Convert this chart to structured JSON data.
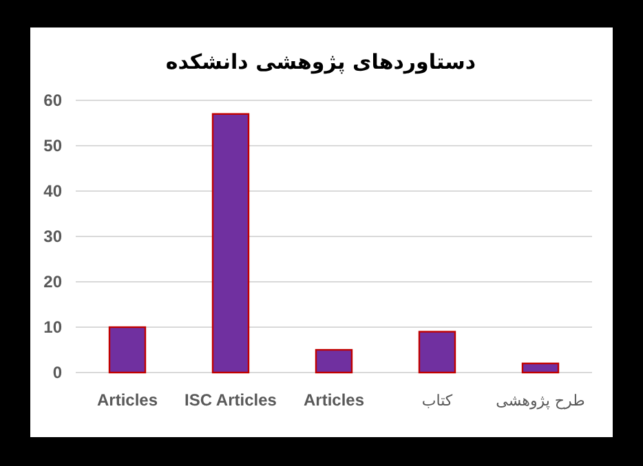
{
  "chart_data": {
    "type": "bar",
    "title": "دستاوردهای پژوهشی دانشکده",
    "categories": [
      "Articles",
      "ISC Articles",
      "Articles",
      "کتاب",
      "طرح پژوهشی"
    ],
    "values": [
      10,
      57,
      5,
      9,
      2
    ],
    "color": "#7030a0",
    "ylim": [
      0,
      60
    ],
    "yticks": [
      0,
      10,
      20,
      30,
      40,
      50,
      60
    ],
    "grid": "y"
  }
}
